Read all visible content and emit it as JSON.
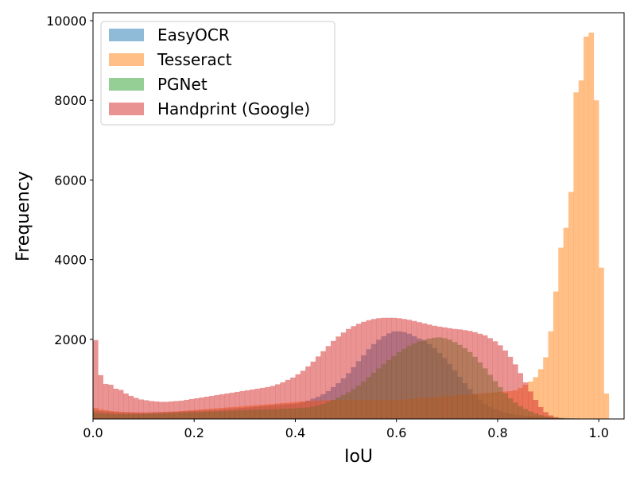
{
  "chart_data": {
    "type": "histogram",
    "xlabel": "IoU",
    "ylabel": "Frequency",
    "xlim": [
      0.0,
      1.05
    ],
    "ylim": [
      0,
      10200
    ],
    "xticks": [
      0.0,
      0.2,
      0.4,
      0.6,
      0.8,
      1.0
    ],
    "xtick_labels": [
      "0.0",
      "0.2",
      "0.4",
      "0.6",
      "0.8",
      "1.0"
    ],
    "yticks": [
      2000,
      4000,
      6000,
      8000,
      10000
    ],
    "ytick_labels": [
      "2000",
      "4000",
      "6000",
      "8000",
      "10000"
    ],
    "grid": false,
    "legend_position": "top-left",
    "bin_start": 0.0,
    "bin_width": 0.01,
    "bar_opacity": 0.5,
    "series": [
      {
        "name": "EasyOCR",
        "color": "#1f77b4",
        "values": [
          220,
          200,
          190,
          180,
          170,
          165,
          160,
          160,
          160,
          160,
          160,
          165,
          170,
          170,
          175,
          180,
          185,
          190,
          195,
          200,
          205,
          210,
          215,
          220,
          230,
          240,
          250,
          260,
          270,
          280,
          290,
          300,
          310,
          320,
          330,
          340,
          350,
          360,
          370,
          380,
          390,
          420,
          460,
          510,
          560,
          620,
          700,
          800,
          900,
          1020,
          1150,
          1300,
          1450,
          1600,
          1750,
          1880,
          1990,
          2080,
          2150,
          2200,
          2200,
          2180,
          2140,
          2080,
          2020,
          1960,
          1880,
          1780,
          1660,
          1530,
          1380,
          1220,
          1060,
          900,
          750,
          610,
          490,
          390,
          310,
          250,
          200,
          160,
          130,
          110,
          95,
          85,
          75,
          65,
          55,
          45,
          40,
          35,
          30,
          25,
          20,
          15,
          10,
          8,
          5,
          3,
          2,
          1
        ]
      },
      {
        "name": "Tesseract",
        "color": "#ff7f0e",
        "values": [
          280,
          240,
          220,
          200,
          190,
          180,
          175,
          170,
          165,
          160,
          160,
          165,
          170,
          175,
          180,
          185,
          190,
          200,
          210,
          220,
          230,
          240,
          250,
          260,
          270,
          280,
          290,
          300,
          310,
          320,
          330,
          340,
          350,
          360,
          370,
          380,
          390,
          400,
          410,
          420,
          430,
          440,
          450,
          460,
          460,
          465,
          470,
          470,
          475,
          480,
          480,
          480,
          480,
          480,
          480,
          480,
          480,
          480,
          480,
          480,
          480,
          490,
          500,
          510,
          520,
          530,
          540,
          550,
          560,
          570,
          580,
          590,
          600,
          610,
          620,
          630,
          640,
          650,
          660,
          670,
          680,
          690,
          700,
          720,
          780,
          860,
          940,
          1050,
          1250,
          1550,
          2200,
          3200,
          4300,
          4800,
          5700,
          8200,
          8500,
          9600,
          9700,
          8000,
          3800,
          640,
          0,
          0,
          0,
          0
        ]
      },
      {
        "name": "PGNet",
        "color": "#2ca02c",
        "values": [
          150,
          140,
          130,
          125,
          120,
          118,
          115,
          115,
          115,
          118,
          120,
          125,
          130,
          135,
          140,
          145,
          150,
          155,
          160,
          165,
          170,
          175,
          180,
          185,
          190,
          195,
          200,
          205,
          210,
          215,
          220,
          225,
          230,
          235,
          240,
          245,
          250,
          255,
          260,
          265,
          270,
          280,
          290,
          310,
          340,
          380,
          430,
          480,
          540,
          600,
          670,
          750,
          840,
          940,
          1050,
          1160,
          1270,
          1380,
          1480,
          1580,
          1680,
          1760,
          1840,
          1900,
          1950,
          1990,
          2020,
          2040,
          2050,
          2030,
          1990,
          1930,
          1860,
          1780,
          1680,
          1560,
          1420,
          1270,
          1110,
          950,
          800,
          650,
          520,
          410,
          320,
          250,
          190,
          140,
          100,
          70,
          50,
          30,
          20,
          12,
          8,
          5,
          3,
          2,
          1,
          0
        ]
      },
      {
        "name": "Handprint (Google)",
        "color": "#d62728",
        "values": [
          1980,
          1100,
          880,
          860,
          760,
          730,
          640,
          580,
          530,
          490,
          470,
          450,
          440,
          430,
          430,
          440,
          450,
          460,
          480,
          500,
          520,
          540,
          560,
          580,
          600,
          620,
          640,
          660,
          680,
          700,
          720,
          740,
          760,
          780,
          800,
          830,
          870,
          920,
          980,
          1040,
          1120,
          1210,
          1320,
          1440,
          1570,
          1700,
          1830,
          1960,
          2070,
          2170,
          2260,
          2330,
          2390,
          2440,
          2480,
          2510,
          2530,
          2540,
          2540,
          2540,
          2530,
          2510,
          2490,
          2460,
          2430,
          2400,
          2370,
          2340,
          2320,
          2300,
          2280,
          2260,
          2250,
          2230,
          2210,
          2180,
          2140,
          2100,
          2030,
          1950,
          1850,
          1720,
          1560,
          1370,
          1150,
          920,
          690,
          480,
          300,
          170,
          90,
          45,
          20,
          10,
          5,
          2,
          1,
          0,
          0,
          0
        ]
      }
    ]
  }
}
